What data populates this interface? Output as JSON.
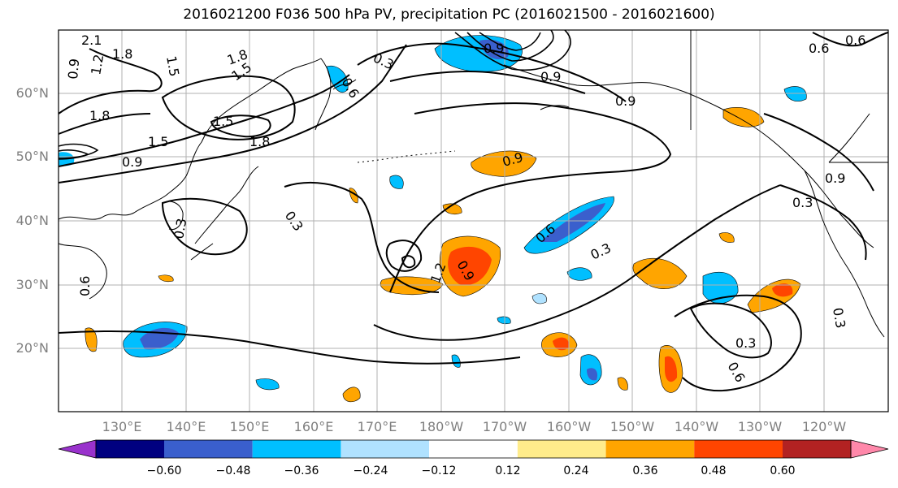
{
  "title": "2016021200 F036 500 hPa PV, precipitation PC (2016021500 - 2016021600)",
  "map": {
    "lat_ticks": [
      "60°N",
      "50°N",
      "40°N",
      "30°N",
      "20°N"
    ],
    "lon_ticks": [
      "130°E",
      "140°E",
      "150°E",
      "160°E",
      "170°E",
      "180°W",
      "170°W",
      "160°W",
      "150°W",
      "140°W",
      "130°W",
      "120°W"
    ],
    "pv_contour_labels": [
      "2.1",
      "1.8",
      "1.5",
      "1.2",
      "0.9",
      "1.8",
      "1.5",
      "1.8",
      "1.5",
      "1.5",
      "1.8",
      "0.9",
      "0.3",
      "0.6",
      "0.3",
      "0.9",
      "0.9",
      "0.3",
      "0.9",
      "0.6",
      "0.9",
      "1.2",
      "0.3",
      "0.6",
      "0.3",
      "0.3",
      "0.9",
      "0.6",
      "0.3",
      "0.6",
      "0.9",
      "0.6"
    ],
    "colors": {
      "land_border": "#000000",
      "grid": "#b0b0b0",
      "pv_contour": "#000000"
    }
  },
  "colorbar": {
    "ticks": [
      "−0.60",
      "−0.48",
      "−0.36",
      "−0.24",
      "−0.12",
      "0.12",
      "0.24",
      "0.36",
      "0.48",
      "0.60"
    ],
    "colors": [
      "#9932cc",
      "#000080",
      "#3a5fcd",
      "#00bfff",
      "#b0e2ff",
      "#ffffff",
      "#ffec8b",
      "#ffa500",
      "#ff4500",
      "#b22222",
      "#ff88aa"
    ]
  }
}
